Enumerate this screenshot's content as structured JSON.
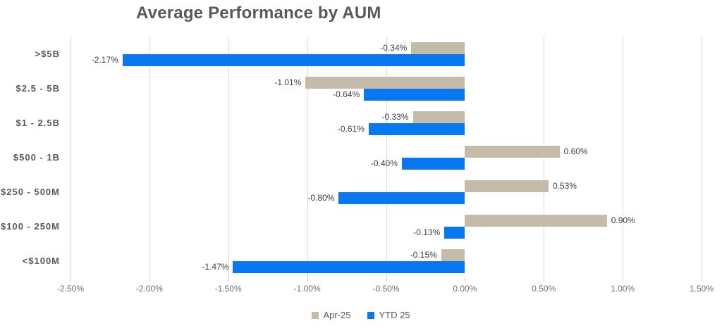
{
  "chart_data": {
    "type": "bar",
    "orientation": "horizontal",
    "title": "Average Performance by AUM",
    "categories": [
      ">$5B",
      "$2.5 - 5B",
      "$1 - 2.5B",
      "$500 - 1B",
      "$250 - 500M",
      "$100 - 250M",
      "<$100M"
    ],
    "series": [
      {
        "name": "Apr-25",
        "color": "#c4bca8",
        "values": [
          -0.34,
          -1.01,
          -0.33,
          0.6,
          0.53,
          0.9,
          -0.15
        ]
      },
      {
        "name": "YTD 25",
        "color": "#0778f2",
        "values": [
          -2.17,
          -0.64,
          -0.61,
          -0.4,
          -0.8,
          -0.13,
          -1.47
        ]
      }
    ],
    "value_labels": [
      [
        "-0.34%",
        "-1.01%",
        "-0.33%",
        "0.60%",
        "0.53%",
        "0.90%",
        "-0.15%"
      ],
      [
        "-2.17%",
        "-0.64%",
        "-0.61%",
        "-0.40%",
        "-0.80%",
        "-0.13%",
        "-1.47%"
      ]
    ],
    "xlabel": "",
    "ylabel": "",
    "xlim": [
      -2.5,
      1.5
    ],
    "tick_step": 0.5,
    "tick_labels": [
      "-2.50%",
      "-2.00%",
      "-1.50%",
      "-1.00%",
      "-0.50%",
      "0.00%",
      "0.50%",
      "1.00%",
      "1.50%"
    ],
    "grid": true,
    "zero_gridline_hidden": true,
    "legend_position": "bottom",
    "colors": {
      "title": "#595959",
      "category_label": "#595959",
      "axis_label": "#6e6e6e",
      "value_label": "#404040",
      "gridline": "#d9d9d9",
      "background": "#ffffff"
    }
  }
}
